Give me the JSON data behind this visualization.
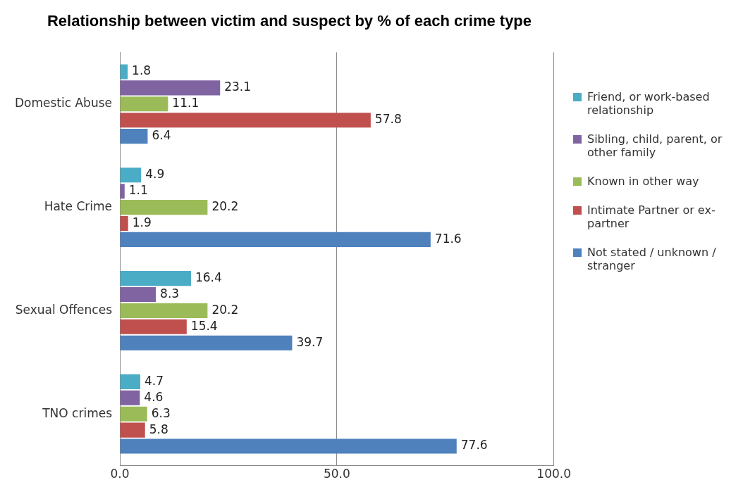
{
  "chart_data": {
    "type": "bar",
    "orientation": "horizontal",
    "title": "Relationship between victim and suspect by % of each crime type",
    "categories": [
      "Domestic Abuse",
      "Hate Crime",
      "Sexual Offences",
      "TNO crimes"
    ],
    "series": [
      {
        "name": "Friend, or work-based relationship",
        "color": "#4bacc6",
        "values": [
          1.8,
          4.9,
          16.4,
          4.7
        ]
      },
      {
        "name": "Sibling, child, parent, or other family",
        "color": "#8064a2",
        "values": [
          23.1,
          1.1,
          8.3,
          4.6
        ]
      },
      {
        "name": "Known in other way",
        "color": "#9bbb59",
        "values": [
          11.1,
          20.2,
          20.2,
          6.3
        ]
      },
      {
        "name": "Intimate Partner or ex-partner",
        "color": "#c0504d",
        "values": [
          57.8,
          1.9,
          15.4,
          5.8
        ]
      },
      {
        "name": "Not stated / unknown / stranger",
        "color": "#4f81bd",
        "values": [
          6.4,
          71.6,
          39.7,
          77.6
        ]
      }
    ],
    "xlim": [
      0,
      100
    ],
    "xticks": [
      {
        "value": 0,
        "label": "0.0"
      },
      {
        "value": 50,
        "label": "50.0"
      },
      {
        "value": 100,
        "label": "100.0"
      }
    ],
    "grid": "x",
    "legend": "right",
    "data_labels": true
  }
}
